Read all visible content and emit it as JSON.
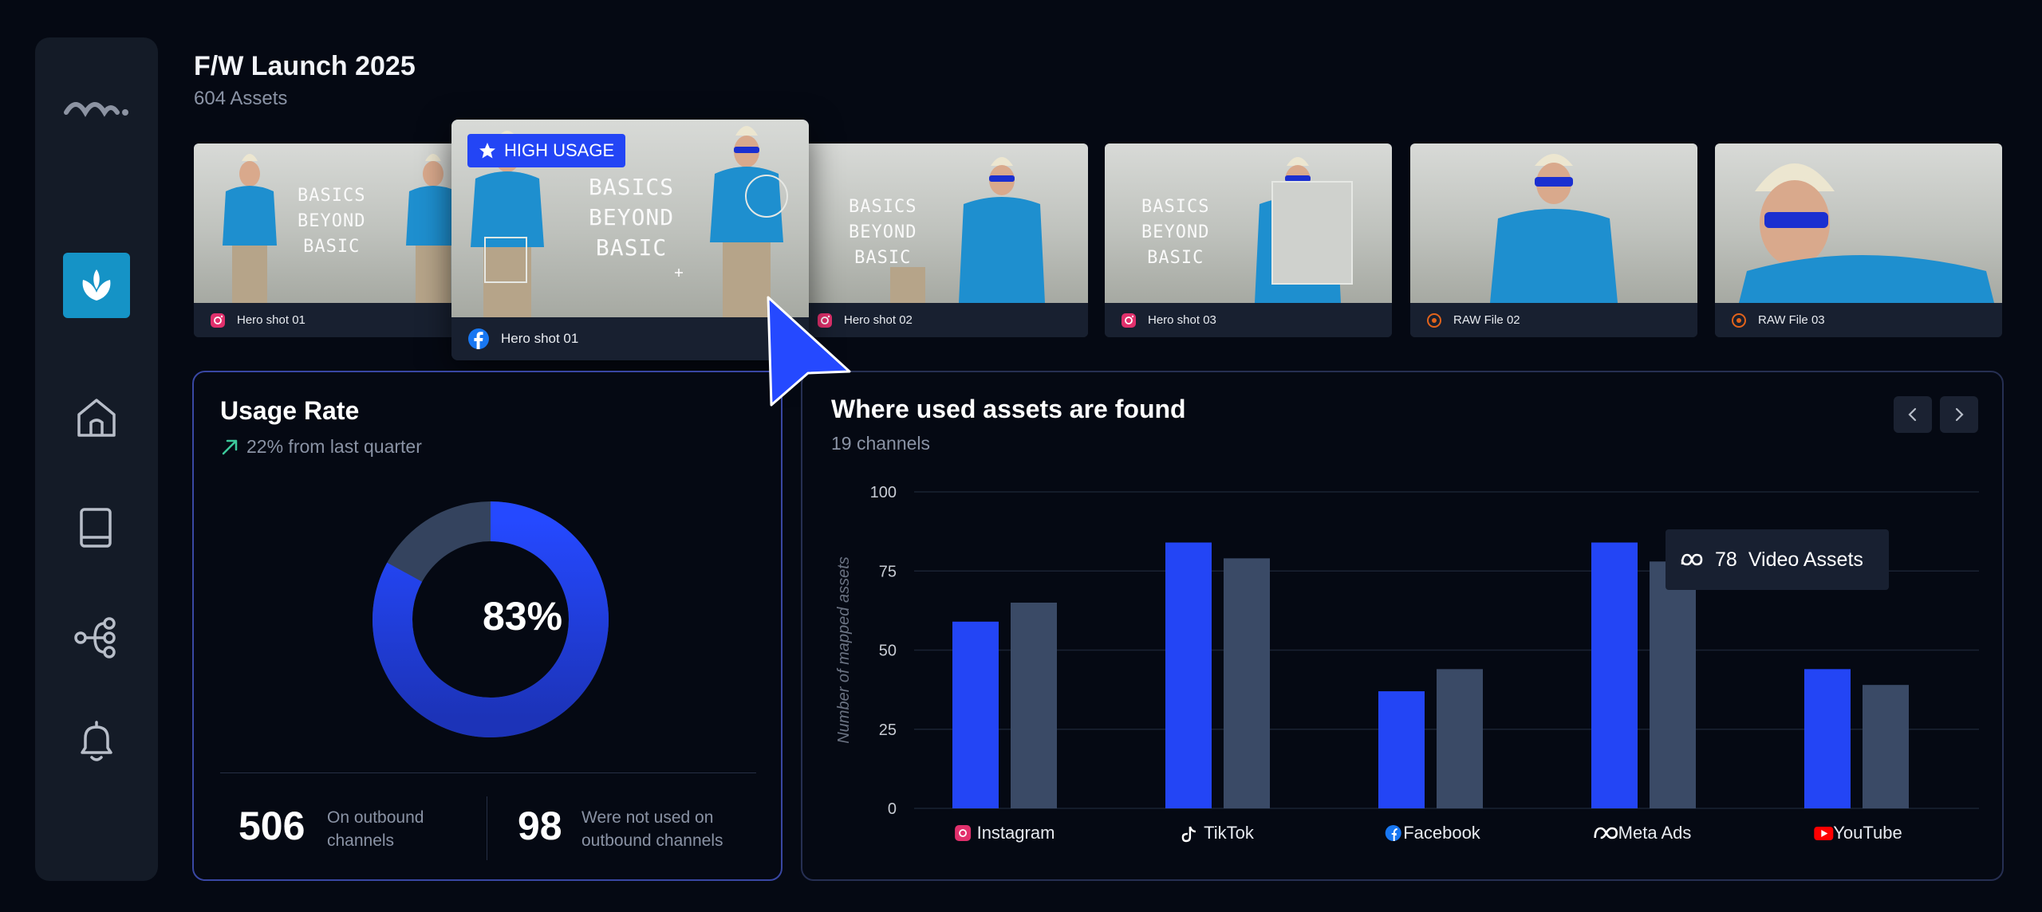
{
  "header": {
    "title": "F/W Launch 2025",
    "subtitle": "604 Assets"
  },
  "sidebar": {
    "items": [
      {
        "name": "home",
        "icon": "home-icon"
      },
      {
        "name": "library",
        "icon": "book-icon"
      },
      {
        "name": "workflows",
        "icon": "network-icon"
      },
      {
        "name": "notifications",
        "icon": "bell-icon"
      }
    ]
  },
  "assets": [
    {
      "name": "Hero shot 01",
      "channel": "instagram",
      "thumb_text": "BASICS\nBEYOND\nBASIC"
    },
    {
      "name": "Hero shot 02",
      "channel": "instagram",
      "thumb_text": "BASICS\nBEYOND\nBASIC"
    },
    {
      "name": "Hero shot 03",
      "channel": "instagram",
      "thumb_text": "BASICS\nBEYOND\nBASIC"
    },
    {
      "name": "RAW File 02",
      "channel": "raw"
    },
    {
      "name": "RAW File 03",
      "channel": "raw"
    }
  ],
  "featured": {
    "badge": "HIGH USAGE",
    "name": "Hero shot 01",
    "channel": "facebook",
    "thumb_text": "BASICS\nBEYOND\nBASIC"
  },
  "usage": {
    "title": "Usage Rate",
    "trend": "22% from last quarter",
    "percent_label": "83%",
    "percent_value": 83,
    "stat1": {
      "value": "506",
      "label_line1": "On outbound",
      "label_line2": "channels"
    },
    "stat2": {
      "value": "98",
      "label_line1": "Were not used on",
      "label_line2": "outbound channels"
    }
  },
  "where": {
    "title": "Where used assets are found",
    "subtitle": "19 channels"
  },
  "tooltip": {
    "value": "78",
    "label": "Video Assets"
  },
  "colors": {
    "accent": "#2345f5",
    "secondary_bar": "#3a4a66",
    "brand_tile": "#1593c6"
  },
  "chart_data": {
    "type": "bar",
    "categories": [
      "Instagram",
      "TikTok",
      "Facebook",
      "Meta Ads",
      "YouTube"
    ],
    "series": [
      {
        "values": [
          59,
          84,
          37,
          84,
          44
        ]
      },
      {
        "values": [
          65,
          79,
          44,
          78,
          39
        ]
      }
    ],
    "ylabel": "Number of mapped assets",
    "ylim": [
      0,
      100
    ],
    "yticks": [
      0,
      25,
      50,
      75,
      100
    ],
    "grid": true
  }
}
